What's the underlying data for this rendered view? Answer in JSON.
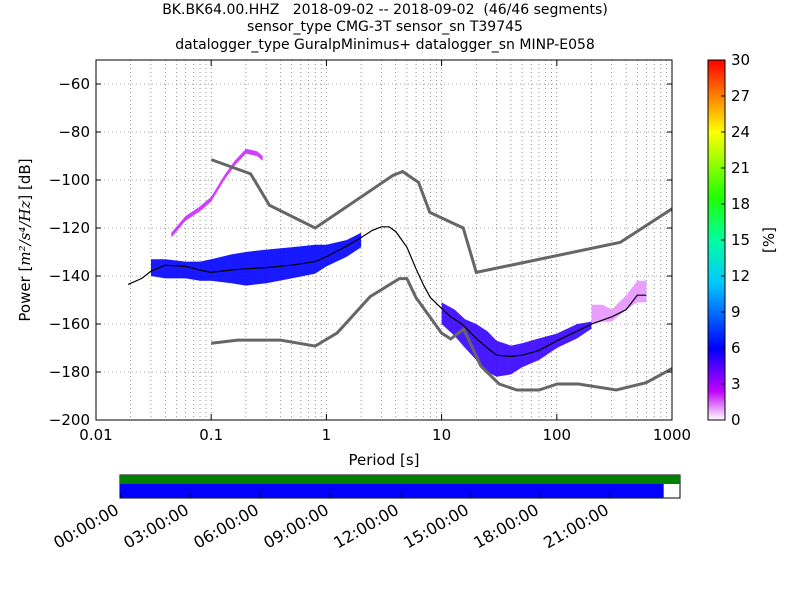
{
  "title": {
    "line1": "BK.BK64.00.HHZ   2018-09-02 -- 2018-09-02  (46/46 segments)",
    "line2": "sensor_type CMG-3T sensor_sn T39745",
    "line3": "datalogger_type GuralpMinimus+ datalogger_sn MINP-E058"
  },
  "chart_data": [
    {
      "type": "heatmap",
      "title": "BK.BK64.00.HHZ   2018-09-02 -- 2018-09-02  (46/46 segments)",
      "xlabel": "Period [s]",
      "ylabel_prefix": "Power [",
      "ylabel_unit": "m²/s⁴/Hz",
      "ylabel_suffix": "] [dB]",
      "xscale": "log",
      "xlim": [
        0.01,
        1000
      ],
      "ylim": [
        -200,
        -50
      ],
      "grid": true,
      "xticks": [
        {
          "value": 0.01,
          "label": "0.01"
        },
        {
          "value": 0.1,
          "label": "0.1"
        },
        {
          "value": 1,
          "label": "1"
        },
        {
          "value": 10,
          "label": "10"
        },
        {
          "value": 100,
          "label": "100"
        },
        {
          "value": 1000,
          "label": "1000"
        }
      ],
      "yticks": [
        {
          "value": -200,
          "label": "−200"
        },
        {
          "value": -180,
          "label": "−180"
        },
        {
          "value": -160,
          "label": "−160"
        },
        {
          "value": -140,
          "label": "−140"
        },
        {
          "value": -120,
          "label": "−120"
        },
        {
          "value": -100,
          "label": "−100"
        },
        {
          "value": -80,
          "label": "−80"
        },
        {
          "value": -60,
          "label": "−60"
        }
      ],
      "colorbar": {
        "label": "[%]",
        "range": [
          0,
          30
        ],
        "ticks": [
          "0",
          "3",
          "6",
          "9",
          "12",
          "15",
          "18",
          "21",
          "24",
          "27",
          "30"
        ]
      },
      "noise_models": {
        "color": "#666666",
        "nhnm": {
          "x": [
            0.1,
            0.22,
            0.32,
            0.8,
            3.8,
            4.6,
            6.3,
            7.9,
            15.4,
            20,
            354.8,
            1000
          ],
          "y": [
            -91.5,
            -97.4,
            -110.5,
            -120,
            -98,
            -96.5,
            -101,
            -113.5,
            -120,
            -138.5,
            -126,
            -112
          ]
        },
        "nlnm": {
          "x": [
            0.1,
            0.17,
            0.4,
            0.8,
            1.24,
            2.4,
            4.3,
            5,
            6,
            10,
            12,
            15.6,
            21.9,
            31.6,
            45,
            70,
            101,
            154,
            328,
            600,
            1000
          ],
          "y": [
            -168,
            -166.7,
            -166.7,
            -169.2,
            -163.7,
            -148.6,
            -141.1,
            -141.1,
            -149,
            -163.8,
            -166.2,
            -162.1,
            -177.5,
            -185,
            -187.5,
            -187.5,
            -185,
            -185,
            -187.5,
            -184.4,
            -178.6
          ]
        }
      },
      "median": {
        "x": [
          0.019,
          0.025,
          0.03,
          0.04,
          0.06,
          0.08,
          0.1,
          0.15,
          0.2,
          0.3,
          0.5,
          0.8,
          1,
          1.5,
          2,
          2.5,
          3,
          3.5,
          4,
          5,
          6,
          7,
          8,
          10,
          12,
          15,
          20,
          25,
          30,
          40,
          50,
          70,
          100,
          150,
          200,
          300,
          400,
          500,
          600
        ],
        "y": [
          -143.5,
          -141,
          -138,
          -135.5,
          -136,
          -137.5,
          -138.5,
          -137.5,
          -137,
          -136.5,
          -135.5,
          -134,
          -132,
          -127.5,
          -124,
          -121,
          -119.5,
          -119.5,
          -121.5,
          -128,
          -137,
          -144,
          -149,
          -153.5,
          -157,
          -160,
          -166,
          -170,
          -173,
          -173.5,
          -173,
          -171,
          -167,
          -163,
          -160,
          -157,
          -154,
          -148,
          -148
        ]
      },
      "density_bands": [
        {
          "x": [
            0.03,
            0.04,
            0.06,
            0.08,
            0.1,
            0.15,
            0.2,
            0.3,
            0.5,
            0.8,
            1,
            1.5,
            2
          ],
          "y_top": [
            -133,
            -133,
            -134,
            -134,
            -133,
            -131,
            -130,
            -129,
            -128,
            -127,
            -127,
            -125,
            -122
          ],
          "y_bottom": [
            -140,
            -141,
            -141,
            -142,
            -142,
            -143,
            -144,
            -143,
            -141,
            -139,
            -136,
            -132,
            -128
          ],
          "percent": 6
        },
        {
          "x": [
            0.045,
            0.06,
            0.08,
            0.1,
            0.13,
            0.16,
            0.2,
            0.25,
            0.28
          ],
          "y_top": [
            -122,
            -115,
            -111,
            -107,
            -98,
            -92,
            -87,
            -88,
            -90
          ],
          "y_bottom": [
            -124,
            -117,
            -113,
            -109,
            -100,
            -94,
            -89,
            -90,
            -92
          ],
          "percent": 2
        },
        {
          "x": [
            10,
            13,
            16,
            20,
            25,
            30,
            40,
            50,
            70,
            100,
            150,
            200
          ],
          "y_top": [
            -151,
            -154,
            -158,
            -160,
            -163,
            -167,
            -169,
            -168,
            -166,
            -164,
            -160,
            -159
          ],
          "y_bottom": [
            -160,
            -165,
            -170,
            -175,
            -180,
            -182,
            -181,
            -178,
            -175,
            -170,
            -166,
            -162
          ],
          "percent": 5
        },
        {
          "x": [
            200,
            250,
            300,
            400,
            500,
            600
          ],
          "y_top": [
            -152,
            -152,
            -154,
            -148,
            -142,
            -142
          ],
          "y_bottom": [
            -160,
            -159,
            -159,
            -154,
            -151,
            -151
          ],
          "percent": 1
        }
      ]
    },
    {
      "type": "bar",
      "title": "",
      "xticks": [
        "00:00:00",
        "03:00:00",
        "06:00:00",
        "09:00:00",
        "12:00:00",
        "15:00:00",
        "18:00:00",
        "21:00:00"
      ],
      "x_range_hours": [
        0,
        24
      ],
      "series": [
        {
          "start_hour": 0,
          "end_hour": 24,
          "color": "#008000"
        },
        {
          "start_hour": 0,
          "end_hour": 23.3,
          "color": "#0000ff"
        }
      ]
    }
  ]
}
